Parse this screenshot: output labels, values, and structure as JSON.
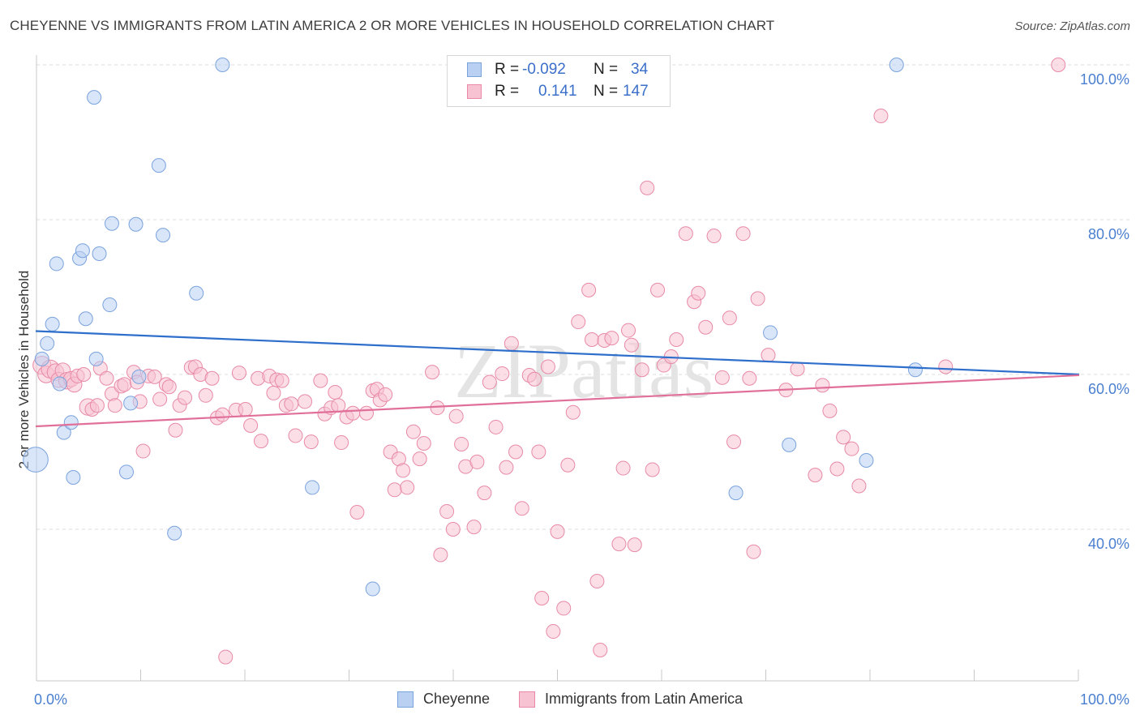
{
  "title": "CHEYENNE VS IMMIGRANTS FROM LATIN AMERICA 2 OR MORE VEHICLES IN HOUSEHOLD CORRELATION CHART",
  "source": "Source: ZipAtlas.com",
  "watermark": "ZIPatlas",
  "colors": {
    "cheyenne_fill": "#b9d0f2",
    "cheyenne_stroke": "#7aa3dd",
    "cheyenne_line": "#2e6fcc",
    "latin_fill": "#f7c3d2",
    "latin_stroke": "#e88aa7",
    "latin_line": "#e0709a",
    "value_text": "#3b6fc9"
  },
  "legend": {
    "rows": [
      {
        "r_label": "R =",
        "r_value": "-0.092",
        "n_label": "N =",
        "n_value": "34"
      },
      {
        "r_label": "R =",
        "r_value": "0.141",
        "n_label": "N =",
        "n_value": "147"
      }
    ]
  },
  "bottom_legend": [
    "Cheyenne",
    "Immigrants from Latin America"
  ],
  "chart_data": {
    "type": "scatter",
    "title": "CHEYENNE VS IMMIGRANTS FROM LATIN AMERICA 2 OR MORE VEHICLES IN HOUSEHOLD CORRELATION CHART",
    "xlabel": "",
    "ylabel": "2 or more Vehicles in Household",
    "xlim": [
      0,
      100
    ],
    "ylim": [
      20,
      102
    ],
    "x_tick_labels": [
      "0.0%",
      "100.0%"
    ],
    "y_ticks": [
      40,
      60,
      80,
      100
    ],
    "y_tick_labels": [
      "40.0%",
      "60.0%",
      "80.0%",
      "100.0%"
    ],
    "grid": "horizontal dashed",
    "legend_position": "top-center",
    "series": [
      {
        "name": "Cheyenne",
        "r": -0.092,
        "n": 34,
        "trend": {
          "x": [
            0,
            100
          ],
          "y": [
            65.6,
            60.0
          ]
        },
        "points": [
          [
            0.0,
            49,
            1.8
          ],
          [
            0.6,
            62,
            1
          ],
          [
            1.1,
            64,
            1
          ],
          [
            1.6,
            66.5,
            1
          ],
          [
            2.0,
            74.3,
            1
          ],
          [
            2.3,
            58.8,
            1
          ],
          [
            2.7,
            52.5,
            1
          ],
          [
            3.4,
            53.8,
            1
          ],
          [
            3.6,
            46.7,
            1
          ],
          [
            4.2,
            75,
            1
          ],
          [
            4.5,
            76,
            1
          ],
          [
            4.8,
            67.2,
            1
          ],
          [
            5.6,
            95.8,
            1
          ],
          [
            5.8,
            62,
            1
          ],
          [
            6.1,
            75.6,
            1
          ],
          [
            7.1,
            69,
            1
          ],
          [
            7.3,
            79.5,
            1
          ],
          [
            8.7,
            47.4,
            1
          ],
          [
            9.1,
            56.3,
            1
          ],
          [
            9.9,
            59.7,
            1
          ],
          [
            9.6,
            79.4,
            1
          ],
          [
            11.8,
            87,
            1
          ],
          [
            12.2,
            78,
            1
          ],
          [
            13.3,
            39.5,
            1
          ],
          [
            15.4,
            70.5,
            1
          ],
          [
            17.9,
            100,
            1
          ],
          [
            26.5,
            45.4,
            1
          ],
          [
            32.3,
            32.3,
            1
          ],
          [
            67.1,
            44.7,
            1
          ],
          [
            70.4,
            65.4,
            1
          ],
          [
            72.2,
            50.9,
            1
          ],
          [
            79.6,
            48.9,
            1
          ],
          [
            82.5,
            100,
            1
          ],
          [
            84.3,
            60.6,
            1
          ]
        ]
      },
      {
        "name": "Immigrants from Latin America",
        "r": 0.141,
        "n": 147,
        "trend": {
          "x": [
            0,
            100
          ],
          "y": [
            53.3,
            59.9
          ]
        },
        "points": [
          [
            0.6,
            61.2,
            1.3
          ],
          [
            1.0,
            60.0,
            1.2
          ],
          [
            1.4,
            60.7,
            1.3
          ],
          [
            1.9,
            60.3,
            1.2
          ],
          [
            2.2,
            59.3,
            1.1
          ],
          [
            2.6,
            60.5,
            1.1
          ],
          [
            3.0,
            59.2,
            1.2
          ],
          [
            3.4,
            59.4,
            1.1
          ],
          [
            3.7,
            58.7,
            1.1
          ],
          [
            4.0,
            59.8,
            1
          ],
          [
            4.6,
            60.0,
            1
          ],
          [
            5.0,
            55.8,
            1.2
          ],
          [
            5.4,
            55.5,
            1
          ],
          [
            5.9,
            56.0,
            1
          ],
          [
            6.2,
            60.8,
            1
          ],
          [
            6.8,
            59.5,
            1
          ],
          [
            7.3,
            57.5,
            1
          ],
          [
            7.6,
            56.0,
            1
          ],
          [
            8.2,
            58.5,
            1
          ],
          [
            8.5,
            58.7,
            1
          ],
          [
            9.4,
            60.3,
            1
          ],
          [
            9.7,
            59.0,
            1
          ],
          [
            10.0,
            56.5,
            1
          ],
          [
            10.3,
            50.1,
            1
          ],
          [
            10.8,
            59.8,
            1
          ],
          [
            11.4,
            59.7,
            1
          ],
          [
            11.9,
            56.8,
            1
          ],
          [
            12.5,
            58.7,
            1
          ],
          [
            12.8,
            58.4,
            1
          ],
          [
            13.4,
            52.8,
            1
          ],
          [
            13.8,
            56.0,
            1
          ],
          [
            14.3,
            57.0,
            1
          ],
          [
            14.9,
            60.9,
            1
          ],
          [
            15.3,
            61.0,
            1
          ],
          [
            15.8,
            60.0,
            1
          ],
          [
            16.3,
            57.3,
            1
          ],
          [
            16.9,
            59.5,
            1
          ],
          [
            17.4,
            54.4,
            1
          ],
          [
            17.9,
            54.8,
            1
          ],
          [
            18.2,
            23.5,
            1
          ],
          [
            19.2,
            55.4,
            1
          ],
          [
            19.5,
            60.2,
            1
          ],
          [
            20.1,
            55.5,
            1
          ],
          [
            20.6,
            53.4,
            1
          ],
          [
            21.3,
            59.5,
            1
          ],
          [
            21.6,
            51.4,
            1
          ],
          [
            22.4,
            59.8,
            1
          ],
          [
            22.8,
            57.6,
            1
          ],
          [
            23.1,
            59.3,
            1
          ],
          [
            23.6,
            59.2,
            1
          ],
          [
            24.0,
            56.0,
            1
          ],
          [
            24.5,
            56.2,
            1
          ],
          [
            24.9,
            52.1,
            1
          ],
          [
            25.8,
            56.5,
            1
          ],
          [
            26.4,
            51.3,
            1
          ],
          [
            27.3,
            59.2,
            1
          ],
          [
            27.7,
            54.9,
            1
          ],
          [
            28.3,
            55.7,
            1
          ],
          [
            28.7,
            57.7,
            1
          ],
          [
            29.0,
            56.0,
            1
          ],
          [
            29.3,
            51.2,
            1
          ],
          [
            29.8,
            54.5,
            1
          ],
          [
            30.4,
            55.0,
            1
          ],
          [
            30.8,
            42.2,
            1
          ],
          [
            31.7,
            55.0,
            1
          ],
          [
            32.3,
            57.9,
            1
          ],
          [
            32.7,
            58.1,
            1
          ],
          [
            33.0,
            56.7,
            1
          ],
          [
            33.5,
            57.4,
            1
          ],
          [
            34.0,
            50.0,
            1
          ],
          [
            34.4,
            45.1,
            1
          ],
          [
            34.8,
            49.1,
            1
          ],
          [
            35.2,
            47.6,
            1
          ],
          [
            35.6,
            45.4,
            1
          ],
          [
            36.2,
            52.6,
            1
          ],
          [
            36.8,
            49.1,
            1
          ],
          [
            37.2,
            51.1,
            1
          ],
          [
            38.0,
            60.3,
            1
          ],
          [
            38.5,
            55.7,
            1
          ],
          [
            38.8,
            36.7,
            1
          ],
          [
            39.4,
            42.3,
            1
          ],
          [
            40.0,
            40.0,
            1
          ],
          [
            40.3,
            54.6,
            1
          ],
          [
            40.8,
            51.0,
            1
          ],
          [
            41.2,
            48.1,
            1
          ],
          [
            42.0,
            40.3,
            1
          ],
          [
            42.3,
            48.7,
            1
          ],
          [
            43.0,
            44.7,
            1
          ],
          [
            43.5,
            59.0,
            1
          ],
          [
            44.1,
            53.2,
            1
          ],
          [
            44.7,
            60.1,
            1
          ],
          [
            45.1,
            48.0,
            1
          ],
          [
            45.6,
            64.0,
            1
          ],
          [
            46.0,
            50.0,
            1
          ],
          [
            46.6,
            42.7,
            1
          ],
          [
            47.3,
            59.9,
            1
          ],
          [
            47.8,
            59.4,
            1
          ],
          [
            48.2,
            50.0,
            1
          ],
          [
            48.5,
            31.1,
            1
          ],
          [
            49.1,
            61.0,
            1
          ],
          [
            49.6,
            26.8,
            1
          ],
          [
            50.0,
            39.7,
            1
          ],
          [
            50.6,
            29.8,
            1
          ],
          [
            51.0,
            48.3,
            1
          ],
          [
            51.5,
            55.1,
            1
          ],
          [
            52.0,
            66.8,
            1
          ],
          [
            53.0,
            70.9,
            1
          ],
          [
            53.3,
            64.5,
            1
          ],
          [
            53.8,
            33.3,
            1
          ],
          [
            54.1,
            24.4,
            1
          ],
          [
            54.5,
            64.4,
            1
          ],
          [
            55.2,
            64.7,
            1
          ],
          [
            55.9,
            38.1,
            1
          ],
          [
            56.3,
            47.9,
            1
          ],
          [
            56.8,
            65.7,
            1
          ],
          [
            57.1,
            63.8,
            1
          ],
          [
            57.4,
            38.0,
            1
          ],
          [
            58.1,
            60.6,
            1
          ],
          [
            58.6,
            84.1,
            1
          ],
          [
            59.1,
            47.7,
            1
          ],
          [
            59.6,
            70.9,
            1
          ],
          [
            60.2,
            61.2,
            1
          ],
          [
            60.9,
            62.3,
            1
          ],
          [
            61.4,
            64.5,
            1
          ],
          [
            62.3,
            78.2,
            1
          ],
          [
            63.1,
            69.4,
            1
          ],
          [
            63.5,
            70.5,
            1
          ],
          [
            64.2,
            66.1,
            1
          ],
          [
            65.0,
            77.9,
            1
          ],
          [
            65.8,
            59.6,
            1
          ],
          [
            66.5,
            67.3,
            1
          ],
          [
            66.9,
            51.3,
            1
          ],
          [
            67.8,
            78.2,
            1
          ],
          [
            68.4,
            59.5,
            1
          ],
          [
            68.8,
            37.1,
            1
          ],
          [
            69.2,
            69.8,
            1
          ],
          [
            70.2,
            62.5,
            1
          ],
          [
            71.9,
            58.0,
            1
          ],
          [
            73.0,
            60.7,
            1
          ],
          [
            74.7,
            47.0,
            1
          ],
          [
            75.4,
            58.6,
            1
          ],
          [
            76.1,
            55.3,
            1
          ],
          [
            76.8,
            47.8,
            1
          ],
          [
            77.4,
            51.9,
            1
          ],
          [
            78.2,
            50.4,
            1
          ],
          [
            78.9,
            45.6,
            1
          ],
          [
            81.0,
            93.4,
            1
          ],
          [
            87.2,
            61.0,
            1
          ],
          [
            98.0,
            100,
            1
          ]
        ]
      }
    ]
  }
}
